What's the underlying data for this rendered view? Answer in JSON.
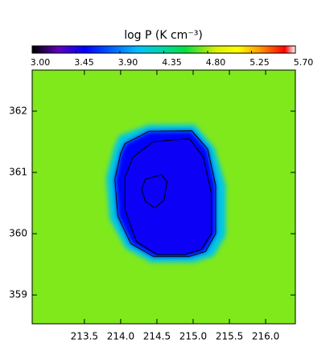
{
  "chart_data": {
    "type": "image",
    "colorbar_title": "log P (K cm⁻³)",
    "clim": [
      3.0,
      5.7
    ],
    "cticks": [
      {
        "value": 3.0,
        "label": "3.00"
      },
      {
        "value": 3.45,
        "label": "3.45"
      },
      {
        "value": 3.9,
        "label": "3.90"
      },
      {
        "value": 4.35,
        "label": "4.35"
      },
      {
        "value": 4.8,
        "label": "4.80"
      },
      {
        "value": 5.25,
        "label": "5.25"
      },
      {
        "value": 5.7,
        "label": "5.70"
      }
    ],
    "colormap": [
      [
        0,
        "#000000"
      ],
      [
        0.1,
        "#6000c0"
      ],
      [
        0.2,
        "#0000ff"
      ],
      [
        0.4,
        "#00c0ff"
      ],
      [
        0.5,
        "#00d8a0"
      ],
      [
        0.58,
        "#00e040"
      ],
      [
        0.7,
        "#e0f000"
      ],
      [
        0.78,
        "#ffff00"
      ],
      [
        0.86,
        "#ffa000"
      ],
      [
        0.96,
        "#ff0000"
      ],
      [
        1,
        "#ffffff"
      ]
    ],
    "xlim": [
      212.78,
      216.41
    ],
    "ylim": [
      358.53,
      362.67
    ],
    "xticks": [
      213.5,
      {
        "value": 214.0,
        "label": "214.0"
      },
      214.5,
      {
        "value": 215.0,
        "label": "215.0"
      },
      215.5,
      {
        "value": 216.0,
        "label": "216.0"
      }
    ],
    "yticks": [
      359,
      360,
      361,
      362
    ],
    "background": 4.75,
    "regions": [
      {
        "level": 4.15,
        "points": [
          [
            213.98,
            361.6
          ],
          [
            214.39,
            361.78
          ],
          [
            215.02,
            361.78
          ],
          [
            215.29,
            361.41
          ],
          [
            215.45,
            360.79
          ],
          [
            215.45,
            359.97
          ],
          [
            215.28,
            359.63
          ],
          [
            215.0,
            359.53
          ],
          [
            214.42,
            359.53
          ],
          [
            214.07,
            359.76
          ],
          [
            213.85,
            360.24
          ],
          [
            213.8,
            360.92
          ],
          [
            213.91,
            361.41
          ]
        ]
      },
      {
        "level": 3.55,
        "points": [
          [
            214.06,
            361.47
          ],
          [
            214.39,
            361.67
          ],
          [
            214.98,
            361.68
          ],
          [
            215.2,
            361.38
          ],
          [
            215.31,
            360.79
          ],
          [
            215.31,
            360.0
          ],
          [
            215.17,
            359.71
          ],
          [
            214.95,
            359.63
          ],
          [
            214.45,
            359.63
          ],
          [
            214.14,
            359.84
          ],
          [
            213.96,
            360.29
          ],
          [
            213.92,
            360.89
          ],
          [
            214.0,
            361.31
          ]
        ]
      },
      {
        "level": 3.5,
        "points": [
          [
            214.17,
            361.25
          ],
          [
            214.45,
            361.5
          ],
          [
            214.95,
            361.55
          ],
          [
            215.14,
            361.25
          ],
          [
            215.25,
            360.66
          ],
          [
            215.25,
            360.0
          ],
          [
            215.11,
            359.74
          ],
          [
            214.89,
            359.66
          ],
          [
            214.5,
            359.66
          ],
          [
            214.22,
            359.87
          ],
          [
            214.06,
            360.39
          ],
          [
            214.06,
            360.92
          ]
        ]
      }
    ],
    "contours": [
      {
        "level": 3.6,
        "points": [
          [
            214.06,
            361.47
          ],
          [
            214.39,
            361.67
          ],
          [
            214.98,
            361.68
          ],
          [
            215.2,
            361.38
          ],
          [
            215.31,
            360.79
          ],
          [
            215.31,
            360.0
          ],
          [
            215.17,
            359.71
          ],
          [
            214.95,
            359.63
          ],
          [
            214.45,
            359.63
          ],
          [
            214.14,
            359.84
          ],
          [
            213.96,
            360.29
          ],
          [
            213.92,
            360.89
          ],
          [
            214.0,
            361.31
          ]
        ]
      },
      {
        "level": 3.5,
        "points": [
          [
            214.17,
            361.25
          ],
          [
            214.45,
            361.5
          ],
          [
            214.95,
            361.55
          ],
          [
            215.14,
            361.25
          ],
          [
            215.25,
            360.66
          ],
          [
            215.25,
            360.0
          ],
          [
            215.11,
            359.74
          ],
          [
            214.89,
            359.66
          ],
          [
            214.5,
            359.66
          ],
          [
            214.22,
            359.87
          ],
          [
            214.06,
            360.39
          ],
          [
            214.06,
            360.92
          ]
        ]
      },
      {
        "level": 3.45,
        "points": [
          [
            214.34,
            360.89
          ],
          [
            214.56,
            360.96
          ],
          [
            214.64,
            360.85
          ],
          [
            214.6,
            360.55
          ],
          [
            214.47,
            360.42
          ],
          [
            214.34,
            360.53
          ],
          [
            214.29,
            360.72
          ]
        ]
      }
    ]
  }
}
